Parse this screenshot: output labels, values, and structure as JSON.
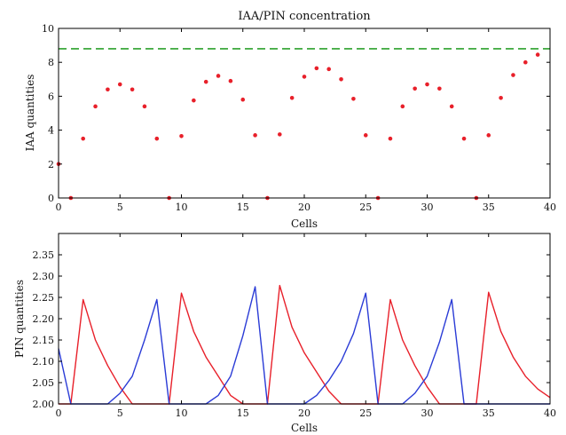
{
  "chart_data": [
    {
      "type": "scatter",
      "title": "IAA/PIN concentration",
      "xlabel": "Cells",
      "ylabel": "IAA quantities",
      "xlim": [
        0,
        40
      ],
      "ylim": [
        0,
        10
      ],
      "xticks": [
        "0",
        "5",
        "10",
        "15",
        "20",
        "25",
        "30",
        "35",
        "40"
      ],
      "yticks": [
        "0",
        "2",
        "4",
        "6",
        "8",
        "10"
      ],
      "grid": false,
      "series": [
        {
          "color": "#e8202a",
          "marker": "dot",
          "x": [
            0,
            1,
            2,
            3,
            4,
            5,
            6,
            7,
            8,
            9,
            10,
            11,
            12,
            13,
            14,
            15,
            16,
            17,
            18,
            19,
            20,
            21,
            22,
            23,
            24,
            25,
            26,
            27,
            28,
            29,
            30,
            31,
            32,
            33,
            34,
            35,
            36,
            37,
            38,
            39
          ],
          "y": [
            2.0,
            0.0,
            3.5,
            5.4,
            6.4,
            6.7,
            6.4,
            5.4,
            3.5,
            0.0,
            3.65,
            5.75,
            6.85,
            7.2,
            6.9,
            5.8,
            3.7,
            0.0,
            3.75,
            5.9,
            7.15,
            7.65,
            7.6,
            7.0,
            5.85,
            3.7,
            0.0,
            3.5,
            5.4,
            6.45,
            6.7,
            6.45,
            5.4,
            3.5,
            0.0,
            3.7,
            5.9,
            7.25,
            8.0,
            8.45
          ]
        }
      ],
      "reference_line": {
        "y": 8.8,
        "style": "dashed",
        "color": "#2ca02c"
      }
    },
    {
      "type": "line",
      "title": "",
      "xlabel": "Cells",
      "ylabel": "PIN quantities",
      "xlim": [
        0,
        40
      ],
      "ylim": [
        2.0,
        2.4
      ],
      "xticks": [
        "0",
        "5",
        "10",
        "15",
        "20",
        "25",
        "30",
        "35",
        "40"
      ],
      "yticks": [
        "2.00",
        "2.05",
        "2.10",
        "2.15",
        "2.20",
        "2.25",
        "2.30",
        "2.35"
      ],
      "grid": false,
      "series": [
        {
          "color": "#e8202a",
          "x": [
            0,
            1,
            2,
            3,
            4,
            5,
            6,
            7,
            8,
            9,
            10,
            11,
            12,
            13,
            14,
            15,
            16,
            17,
            18,
            19,
            20,
            21,
            22,
            23,
            24,
            25,
            26,
            27,
            28,
            29,
            30,
            31,
            32,
            33,
            34,
            35,
            36,
            37,
            38,
            39,
            40
          ],
          "y": [
            2.0,
            2.0,
            2.245,
            2.15,
            2.09,
            2.04,
            2.0,
            2.0,
            2.0,
            2.0,
            2.26,
            2.17,
            2.11,
            2.065,
            2.02,
            2.0,
            2.0,
            2.0,
            2.278,
            2.18,
            2.12,
            2.075,
            2.03,
            2.0,
            2.0,
            2.0,
            2.0,
            2.245,
            2.15,
            2.09,
            2.04,
            2.0,
            2.0,
            2.0,
            2.0,
            2.262,
            2.17,
            2.11,
            2.065,
            2.035,
            2.015
          ]
        },
        {
          "color": "#2a3bd6",
          "x": [
            0,
            1,
            2,
            3,
            4,
            5,
            6,
            7,
            8,
            9,
            10,
            11,
            12,
            13,
            14,
            15,
            16,
            17,
            18,
            19,
            20,
            21,
            22,
            23,
            24,
            25,
            26,
            27,
            28,
            29,
            30,
            31,
            32,
            33,
            34,
            35,
            36,
            37,
            38,
            39,
            40
          ],
          "y": [
            2.13,
            2.0,
            2.0,
            2.0,
            2.0,
            2.025,
            2.065,
            2.15,
            2.245,
            2.0,
            2.0,
            2.0,
            2.0,
            2.02,
            2.065,
            2.16,
            2.275,
            2.0,
            2.0,
            2.0,
            2.0,
            2.02,
            2.055,
            2.1,
            2.165,
            2.26,
            2.0,
            2.0,
            2.0,
            2.025,
            2.065,
            2.145,
            2.245,
            2.0,
            2.0,
            2.0,
            2.0,
            2.0,
            2.0,
            2.0,
            2.0
          ]
        }
      ]
    }
  ]
}
